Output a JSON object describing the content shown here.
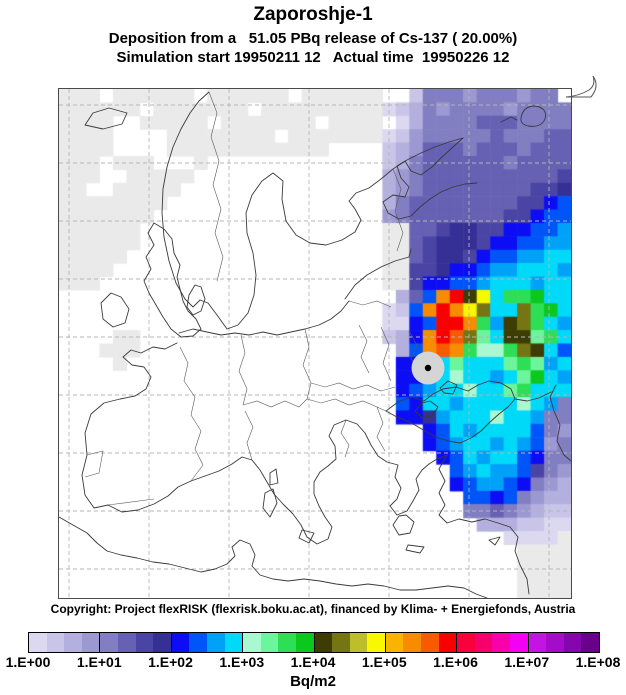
{
  "header": {
    "title": "Zaporoshje-1",
    "subtitle1": "Deposition from a   51.05 PBq release of Cs-137 ( 20.00%)",
    "subtitle2": "Simulation start 19950211 12   Actual time  19950226 12"
  },
  "footer": {
    "copyright": "Copyright: Project flexRISK (flexrisk.boku.ac.at), financed by Klima- + Energiefonds, Austria",
    "unit": "Bq/m2"
  },
  "colorbar": {
    "tick_labels": [
      "1.E+00",
      "1.E+01",
      "1.E+02",
      "1.E+03",
      "1.E+04",
      "1.E+05",
      "1.E+06",
      "1.E+07",
      "1.E+08"
    ],
    "segment_colors": [
      "#dcd8f0",
      "#c9c5e8",
      "#b3afdf",
      "#9c98d2",
      "#827ec2",
      "#6661b3",
      "#4a45a5",
      "#353095",
      "#0d0df5",
      "#0055f8",
      "#00a2f8",
      "#00d9f8",
      "#aaf8d2",
      "#6cf59c",
      "#2ede57",
      "#0ac81e",
      "#3c3c04",
      "#757514",
      "#bebe2a",
      "#f8f800",
      "#f8b400",
      "#f88c00",
      "#f85a00",
      "#f80000",
      "#f8003c",
      "#f8006c",
      "#f800aa",
      "#f400f4",
      "#c414e4",
      "#a30cc9",
      "#8406ad",
      "#68008c"
    ]
  },
  "map": {
    "background": "#ffffff",
    "outside_color": "#eaeaea",
    "palette": {
      "g": "#eaeaea",
      "a": "#dcd8f0",
      "b": "#c9c5e8",
      "c": "#b3afdf",
      "d": "#9c98d2",
      "e": "#827ec2",
      "f": "#6661b3",
      "h": "#4a45a5",
      "i": "#353095",
      "j": "#0d0df5",
      "k": "#0055f8",
      "l": "#00a2f8",
      "m": "#00d9f8",
      "n": "#aaf8d2",
      "o": "#6cf59c",
      "p": "#2ede57",
      "q": "#0ac81e",
      "r": "#3c3c04",
      "s": "#757514",
      "u": "#bebe2a",
      "v": "#f8f800",
      "w": "#f8b400",
      "x": "#f88c00",
      "y": "#f85a00",
      "z": "#f80000"
    },
    "grid_rows": [
      "ggg.gggggg.gggggg.gggggg..beeedeeedee.",
      "gggggg.ggggggg.gggggggggabcedeeeedeeee",
      "gggg..ggggg.ggggggg.gggg.aceeeefffeeee",
      "gggg....gggggggg.gggggggabdeeeeefeeeff",
      "gggg....gggggggggggg....bcdfffefffefff",
      "ggg.ggg...g.............bceffffffeffff",
      "ggg..ggggg..............cdeffffffffffh",
      "gg..ggggg...............cdeffffffffhhi",
      "gggggggg................ceffffffffhhjk",
      "ggggggg.................defffffffhhjkk",
      "gggggg..................ggffhiihhjjkkl",
      "gggggg..................ggfhiiihjjkkll",
      "ggggg...................ggfhiihjkkllmm",
      "gggg....................gghhijjkllmmml",
      "ggg.....................gghjjkklmmmlmm",
      ".........................cfkxzrvmppqmm",
      "........................abkxzxvsmmspqm",
      "........................aajkzzxplrspml",
      "....gg..................bcjxzysomrropm",
      "...ggg...................ckxyxpnnpsrmk",
      "....g....................jjxmommmopolm",
      ".........................jjlmnmmlmoqml",
      ".........................jklmmnmmopmmm",
      ".........................kjmmlmmmmnmle",
      ".........................jjilmmmnmmlee",
      "...........................jkmlmmmmked",
      "...........................jklmmlmlkde",
      "............................jkmlmmkjee",
      ".............................klmllkhed",
      ".............................jkllkjedc",
      "..............................kkjkedcc",
      "..............................eefedcbb",
      "...............................cccbbaa",
      ".................................aaaag",
      "..................................gggg",
      "..................................gggg",
      "..................................gggg",
      "..................................gggg"
    ],
    "release_marker": {
      "fill": "#d5d5d5",
      "dot": "#000000"
    }
  },
  "chart_data": {
    "type": "heatmap",
    "title": "Zaporoshje-1",
    "subtitle": "Deposition from a 51.05 PBq release of Cs-137 ( 20.00%)",
    "time": "Simulation start 19950211 12, Actual time 19950226 12",
    "unit": "Bq/m2",
    "legend_ticks": [
      "1.E+00",
      "1.E+01",
      "1.E+02",
      "1.E+03",
      "1.E+04",
      "1.E+05",
      "1.E+06",
      "1.E+07",
      "1.E+08"
    ],
    "scale": "logarithmic",
    "decades": 8,
    "segments_per_decade": 4,
    "legend_position": "bottom",
    "note": "Deposition field over Europe; cell values encoded in map.grid_rows via map.palette (letters a-z ascending deposition, g = below 1 Bq/m2, . = none)"
  }
}
